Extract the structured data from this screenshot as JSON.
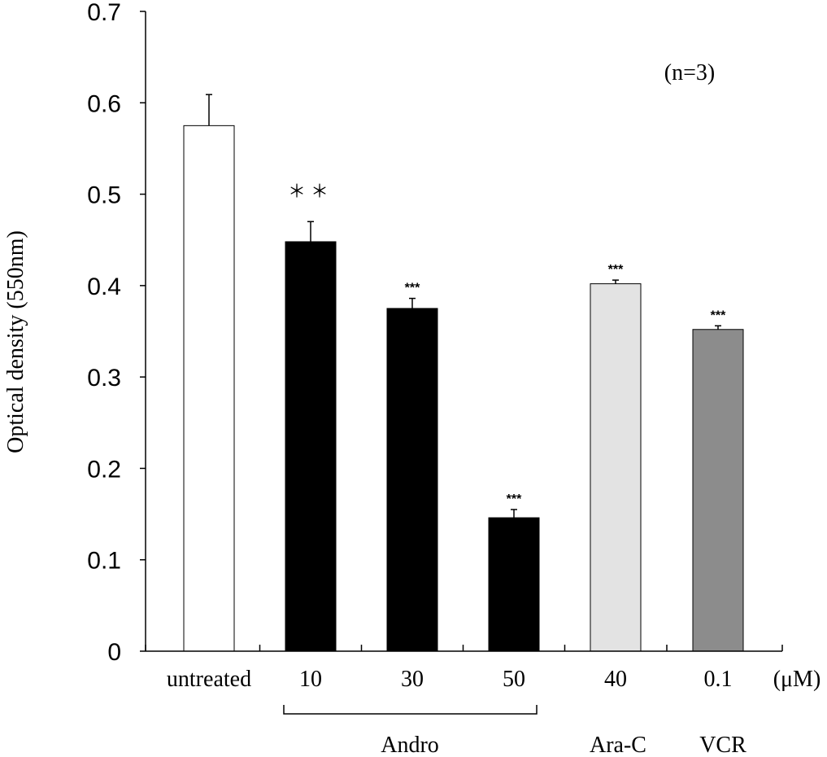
{
  "chart_data": {
    "type": "bar",
    "title": "",
    "xlabel": "",
    "ylabel": "Optical density (550nm)",
    "ylim": [
      0,
      0.7
    ],
    "yticks": [
      "0",
      "0.1",
      "0.2",
      "0.3",
      "0.4",
      "0.5",
      "0.6",
      "0.7"
    ],
    "categories": [
      "untreated",
      "10",
      "30",
      "50",
      "40",
      "0.1"
    ],
    "values": [
      0.575,
      0.448,
      0.375,
      0.146,
      0.402,
      0.352
    ],
    "errors": [
      0.034,
      0.022,
      0.011,
      0.009,
      0.004,
      0.004
    ],
    "significance": [
      "",
      "＊＊",
      "***",
      "***",
      "***",
      "***"
    ],
    "bar_colors": [
      "#ffffff",
      "#000000",
      "#000000",
      "#000000",
      "#e3e3e3",
      "#8c8c8c"
    ],
    "groups": [
      {
        "label": "Andro"
      },
      {
        "label": "Ara-C"
      },
      {
        "label": "VCR"
      }
    ],
    "unit_label": "(μM)",
    "annotation": "(n=3)"
  }
}
